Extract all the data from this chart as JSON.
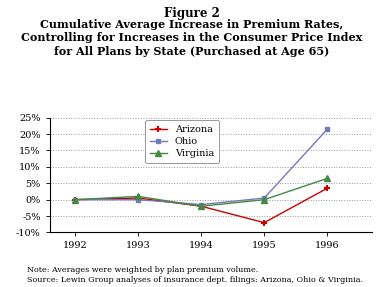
{
  "title_line1": "Figure 2",
  "title_line2": "Cumulative Average Increase in Premium Rates,\nControlling for Increases in the Consumer Price Index\nfor All Plans by State (Purchased at Age 65)",
  "years": [
    1992,
    1993,
    1994,
    1995,
    1996
  ],
  "arizona": [
    0.0,
    0.5,
    -2.0,
    -7.0,
    3.5
  ],
  "ohio": [
    0.0,
    0.0,
    -1.5,
    0.5,
    21.5
  ],
  "virginia": [
    0.0,
    1.0,
    -2.0,
    0.0,
    6.5
  ],
  "arizona_color": "#cc0000",
  "ohio_color": "#7777bb",
  "virginia_color": "#448844",
  "ylim": [
    -10,
    25
  ],
  "yticks": [
    -10,
    -5,
    0,
    5,
    10,
    15,
    20,
    25
  ],
  "bg_color": "#ffffff",
  "grid_color": "#999999",
  "note_line1": "Note: Averages were weighted by plan premium volume.",
  "note_line2": "Source: Lewin Group analyses of insurance dept. filings: Arizona, Ohio & Virginia.",
  "legend_labels": [
    "Arizona",
    "Ohio",
    "Virginia"
  ]
}
